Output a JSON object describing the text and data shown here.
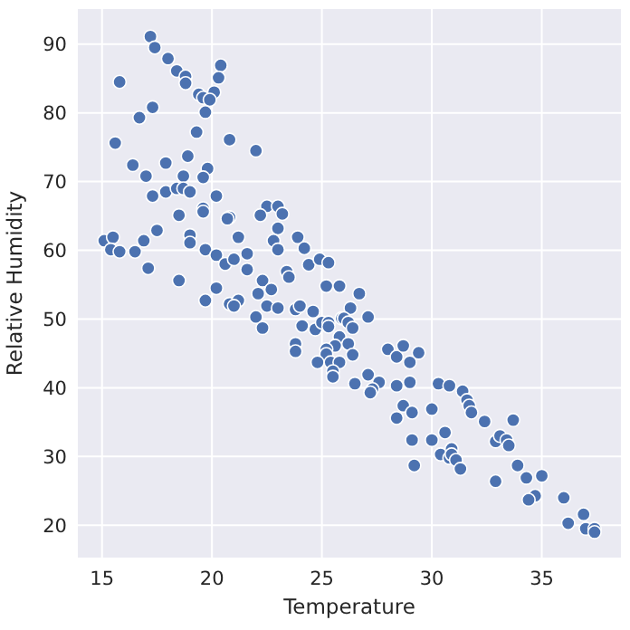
{
  "chart_data": {
    "type": "scatter",
    "xlabel": "Temperature",
    "ylabel": "Relative Humidity",
    "xlim": [
      13.9,
      38.6
    ],
    "xticks": [
      15,
      20,
      25,
      30,
      35
    ],
    "ylim": [
      15.3,
      95.1
    ],
    "yticks": [
      20,
      30,
      40,
      50,
      60,
      70,
      80,
      90
    ],
    "grid": true,
    "marker": "circle",
    "series": [
      {
        "color": "#4c72b0",
        "x": [
          17.2,
          17.4,
          18.0,
          18.4,
          18.8,
          18.8,
          20.4,
          20.3,
          20.1,
          19.4,
          19.6,
          19.9,
          19.7,
          15.8,
          17.3,
          16.7,
          15.6,
          19.3,
          20.8,
          22.0,
          18.9,
          16.4,
          17.9,
          17.0,
          18.7,
          19.8,
          19.6,
          17.3,
          17.9,
          18.4,
          18.7,
          19.0,
          20.2,
          19.6,
          19.6,
          18.5,
          20.8,
          20.7,
          17.5,
          19.0,
          19.0,
          21.2,
          22.5,
          23.0,
          23.2,
          22.2,
          23.0,
          22.8,
          23.0,
          23.9,
          24.2,
          15.1,
          15.5,
          15.4,
          15.8,
          16.5,
          16.9,
          17.1,
          19.7,
          20.2,
          20.6,
          21.0,
          21.6,
          21.6,
          22.3,
          23.4,
          23.5,
          24.4,
          24.9,
          25.3,
          18.5,
          19.7,
          20.2,
          20.8,
          21.2,
          21.0,
          22.7,
          22.1,
          22.0,
          22.3,
          22.5,
          23.0,
          23.8,
          24.0,
          24.1,
          23.8,
          23.8,
          24.6,
          24.7,
          25.0,
          25.3,
          25.3,
          25.2,
          25.8,
          25.9,
          25.8,
          25.6,
          25.2,
          25.2,
          24.8,
          25.4,
          25.8,
          25.5,
          25.5,
          26.7,
          26.3,
          27.1,
          26.0,
          26.2,
          26.4,
          26.2,
          26.4,
          26.5,
          27.1,
          27.6,
          27.3,
          27.2,
          28.0,
          28.4,
          28.7,
          29.0,
          29.4,
          29.0,
          28.4,
          28.7,
          29.1,
          28.4,
          29.1,
          29.2,
          30.0,
          30.3,
          30.8,
          31.4,
          31.6,
          31.7,
          31.8,
          32.4,
          30.0,
          30.6,
          30.4,
          30.8,
          30.9,
          30.9,
          31.1,
          31.3,
          32.9,
          33.1,
          33.4,
          33.5,
          33.7,
          33.9,
          32.9,
          34.3,
          35.0,
          34.7,
          34.4,
          36.0,
          36.9,
          36.2,
          37.0,
          37.4,
          37.4
        ],
        "values": [
          91.1,
          89.5,
          87.9,
          86.1,
          85.3,
          84.3,
          86.9,
          85.1,
          83.0,
          82.7,
          82.2,
          81.9,
          80.1,
          84.5,
          80.8,
          79.3,
          75.6,
          77.2,
          76.1,
          74.5,
          73.7,
          72.4,
          72.7,
          70.8,
          70.8,
          71.9,
          70.6,
          67.9,
          68.5,
          69.0,
          69.0,
          68.5,
          67.9,
          66.1,
          65.6,
          65.1,
          64.8,
          64.6,
          62.9,
          62.2,
          61.1,
          61.9,
          66.4,
          66.4,
          65.3,
          65.1,
          63.2,
          61.4,
          60.1,
          61.9,
          60.3,
          61.4,
          61.9,
          60.1,
          59.8,
          59.8,
          61.4,
          57.4,
          60.1,
          59.3,
          58.0,
          58.7,
          59.5,
          57.2,
          55.6,
          56.9,
          56.1,
          57.9,
          58.7,
          58.2,
          55.6,
          52.7,
          54.5,
          52.2,
          52.7,
          51.9,
          54.3,
          53.7,
          50.3,
          48.7,
          51.9,
          51.6,
          51.4,
          51.9,
          49.0,
          46.4,
          45.3,
          51.1,
          48.5,
          49.5,
          49.5,
          48.9,
          54.8,
          54.8,
          50.1,
          47.4,
          46.1,
          45.6,
          44.9,
          43.7,
          43.7,
          43.7,
          42.4,
          41.6,
          53.7,
          51.6,
          50.3,
          50.1,
          49.5,
          48.7,
          46.4,
          44.8,
          40.6,
          41.9,
          40.8,
          39.8,
          39.3,
          45.6,
          44.5,
          46.1,
          43.7,
          45.1,
          40.8,
          40.3,
          37.4,
          36.4,
          35.6,
          32.4,
          28.7,
          36.9,
          40.6,
          40.3,
          39.5,
          38.2,
          37.4,
          36.4,
          35.1,
          32.4,
          33.5,
          30.3,
          29.8,
          31.1,
          30.3,
          29.5,
          28.2,
          32.2,
          33.0,
          32.4,
          31.6,
          35.3,
          28.7,
          26.4,
          26.9,
          27.2,
          24.3,
          23.7,
          24.0,
          21.6,
          20.3,
          19.5,
          19.5,
          19.0
        ]
      }
    ]
  }
}
